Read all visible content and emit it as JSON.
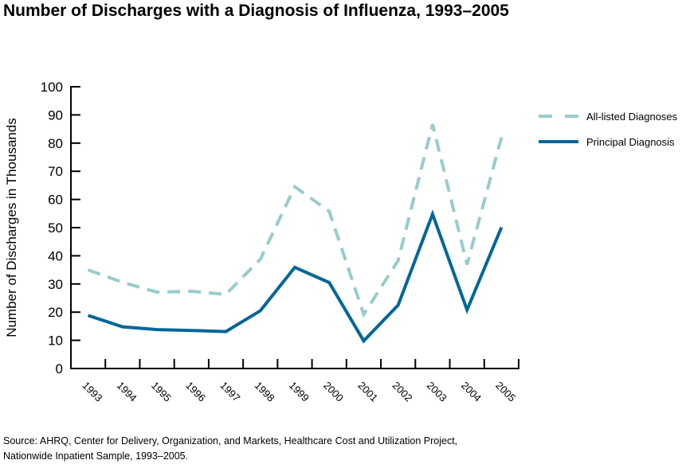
{
  "title": "Number of Discharges with a Diagnosis of Influenza, 1993–2005",
  "source": {
    "line1": "Source:  AHRQ, Center for Delivery, Organization, and Markets, Healthcare Cost and Utilization Project,",
    "line2": "Nationwide Inpatient Sample, 1993–2005."
  },
  "chart_data": {
    "type": "line",
    "title": "Number of Discharges with a Diagnosis of Influenza, 1993–2005",
    "xlabel": "",
    "ylabel": "Number of Discharges in Thousands",
    "ylim": [
      0,
      100
    ],
    "yticks": [
      0,
      10,
      20,
      30,
      40,
      50,
      60,
      70,
      80,
      90,
      100
    ],
    "categories": [
      "1993",
      "1994",
      "1995",
      "1996",
      "1997",
      "1998",
      "1999",
      "2000",
      "2001",
      "2002",
      "2003",
      "2004",
      "2005"
    ],
    "grid": false,
    "legend_position": "right",
    "series": [
      {
        "name": "All-listed Diagnoses",
        "style": "dashed",
        "color": "#99cccc",
        "values": [
          35.0,
          30.6,
          27.1,
          27.4,
          26.3,
          38.8,
          64.5,
          55.8,
          19.2,
          38.3,
          86.7,
          36.9,
          82.0
        ]
      },
      {
        "name": "Principal Diagnosis",
        "style": "solid",
        "color": "#006699",
        "values": [
          18.8,
          14.8,
          13.8,
          13.5,
          13.1,
          20.5,
          35.9,
          30.5,
          9.8,
          22.5,
          54.8,
          20.8,
          50.1
        ]
      }
    ]
  }
}
